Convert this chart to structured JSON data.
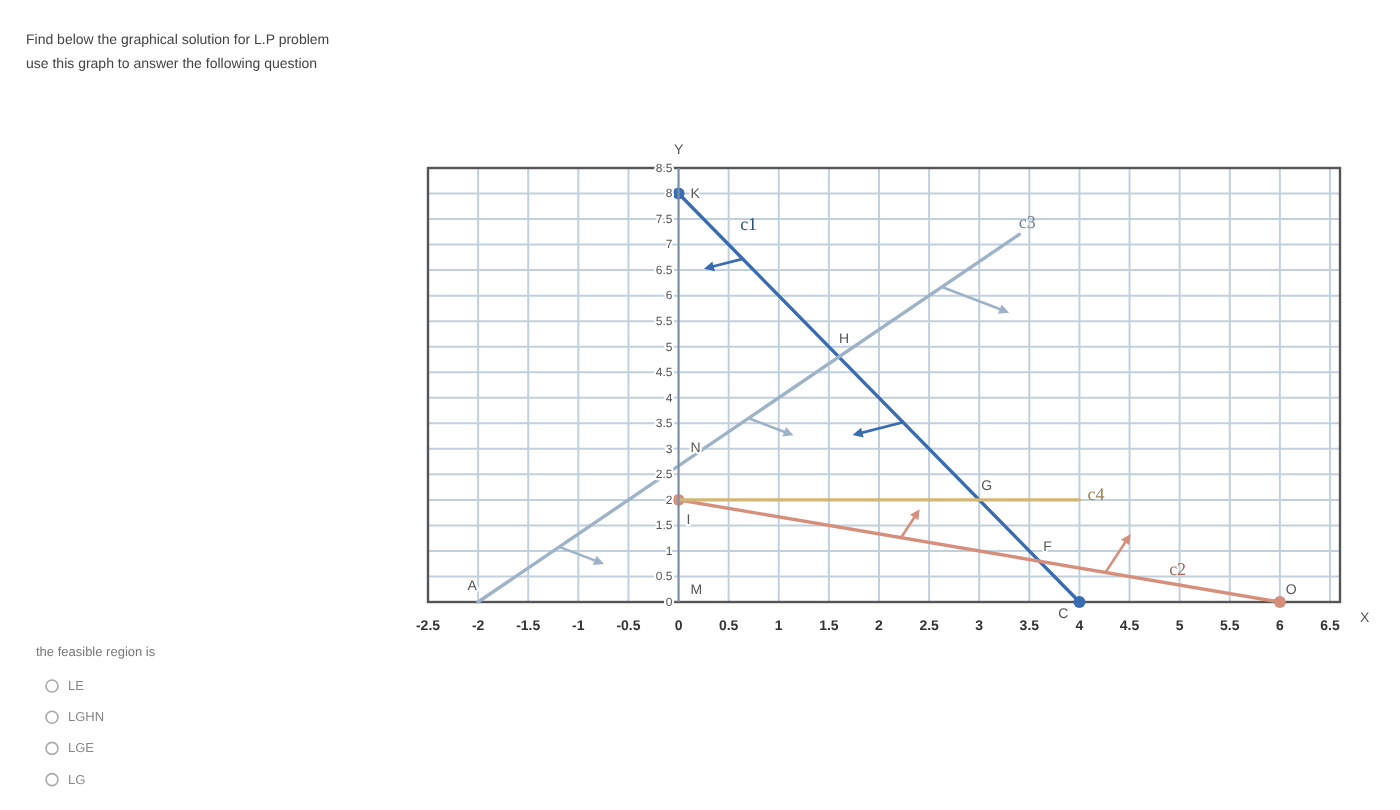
{
  "chart_data": {
    "type": "line",
    "title": "Find below the graphical solution for L.P problem",
    "subtitle": "use this graph to answer the following question",
    "xlabel": "X",
    "ylabel": "Y",
    "xlim": [
      -2.5,
      6.6
    ],
    "ylim": [
      0,
      8.5
    ],
    "xticks": [
      -2.5,
      -2,
      -1.5,
      -1,
      -0.5,
      0,
      0.5,
      1,
      1.5,
      2,
      2.5,
      3,
      3.5,
      4,
      4.5,
      5,
      5.5,
      6,
      6.5
    ],
    "yticks": [
      0,
      0.5,
      1,
      1.5,
      2,
      2.5,
      3,
      3.5,
      4,
      4.5,
      5,
      5.5,
      6,
      6.5,
      7,
      7.5,
      8,
      8.5
    ],
    "grid": true,
    "series": [
      {
        "name": "c1",
        "color": "#3a6cb2",
        "x": [
          0,
          4
        ],
        "values": [
          8,
          0
        ],
        "marker": "circle"
      },
      {
        "name": "c2",
        "color": "#d68f7c",
        "x": [
          0,
          6
        ],
        "values": [
          2,
          0
        ],
        "marker": "circle"
      },
      {
        "name": "c3",
        "color": "#9fb3c8",
        "x": [
          -2,
          3.4
        ],
        "values": [
          0,
          7.2
        ]
      },
      {
        "name": "c4",
        "color": "#d4b674",
        "x": [
          0,
          4
        ],
        "values": [
          2,
          2
        ]
      }
    ],
    "annotations": [
      {
        "text": "A",
        "x": -2,
        "y": 0
      },
      {
        "text": "K",
        "x": 0,
        "y": 8
      },
      {
        "text": "N",
        "x": 0,
        "y": 2.7
      },
      {
        "text": "I",
        "x": 0,
        "y": 2
      },
      {
        "text": "H",
        "x": 1.6,
        "y": 4.8
      },
      {
        "text": "G",
        "x": 3,
        "y": 2
      },
      {
        "text": "F",
        "x": 3.6,
        "y": 0.8
      },
      {
        "text": "C",
        "x": 4,
        "y": 0
      },
      {
        "text": "O",
        "x": 6,
        "y": 0
      },
      "M",
      "the feasible region is",
      "LE",
      "LGHN",
      "LGE",
      "LG"
    ]
  }
}
